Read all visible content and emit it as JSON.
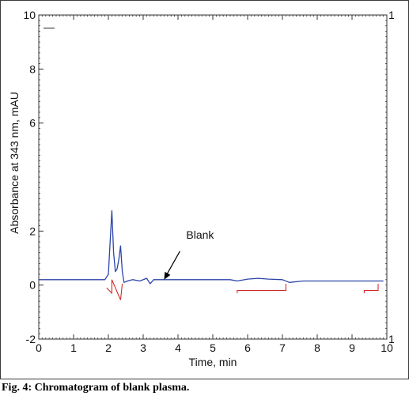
{
  "caption": "Fig. 4: Chromatogram of blank plasma.",
  "chart_data": {
    "type": "line",
    "title": "",
    "xlabel": "Time, min",
    "ylabel": "Absorbance at 343 nm, mAU",
    "xlim": [
      0,
      10
    ],
    "ylim": [
      -2,
      10
    ],
    "x_ticks": [
      0,
      1,
      2,
      3,
      4,
      5,
      6,
      7,
      8,
      9,
      10
    ],
    "y_ticks": [
      -2,
      0,
      2,
      6,
      8,
      10
    ],
    "right_axis_labels": [
      "1",
      "1"
    ],
    "legend_mark": "—",
    "annotation": {
      "text": "Blank",
      "x": 3.6,
      "y": 0.2
    },
    "series": [
      {
        "color": "#2b45a8",
        "x": [
          0.0,
          0.5,
          1.0,
          1.5,
          1.9,
          2.0,
          2.05,
          2.1,
          2.15,
          2.2,
          2.25,
          2.3,
          2.35,
          2.4,
          2.45,
          2.55,
          2.7,
          2.9,
          3.1,
          3.2,
          3.3,
          3.5,
          4.0,
          4.5,
          5.0,
          5.5,
          5.7,
          6.0,
          6.3,
          6.6,
          7.0,
          7.2,
          7.6,
          8.0,
          8.5,
          9.0,
          9.5,
          9.9
        ],
        "y": [
          0.2,
          0.2,
          0.2,
          0.2,
          0.2,
          0.4,
          1.6,
          2.75,
          1.2,
          0.5,
          0.6,
          0.95,
          1.45,
          0.5,
          0.1,
          0.15,
          0.2,
          0.15,
          0.25,
          0.05,
          0.2,
          0.2,
          0.2,
          0.2,
          0.2,
          0.2,
          0.15,
          0.22,
          0.25,
          0.22,
          0.2,
          0.1,
          0.15,
          0.15,
          0.15,
          0.15,
          0.15,
          0.15
        ]
      },
      {
        "color": "#d42a2a",
        "role": "integration baseline",
        "segments": [
          {
            "x": [
              1.95,
              2.1,
              2.1,
              2.35
            ],
            "y": [
              -0.1,
              -0.3,
              0.2,
              -0.55
            ]
          },
          {
            "x": [
              2.35,
              2.4
            ],
            "y": [
              -0.55,
              0.05
            ]
          },
          {
            "x": [
              5.7,
              5.7,
              7.1,
              7.1
            ],
            "y": [
              -0.3,
              -0.2,
              -0.2,
              0.05
            ]
          },
          {
            "x": [
              9.35,
              9.35,
              9.75,
              9.75
            ],
            "y": [
              -0.3,
              -0.2,
              -0.2,
              0.05
            ]
          }
        ]
      }
    ]
  }
}
